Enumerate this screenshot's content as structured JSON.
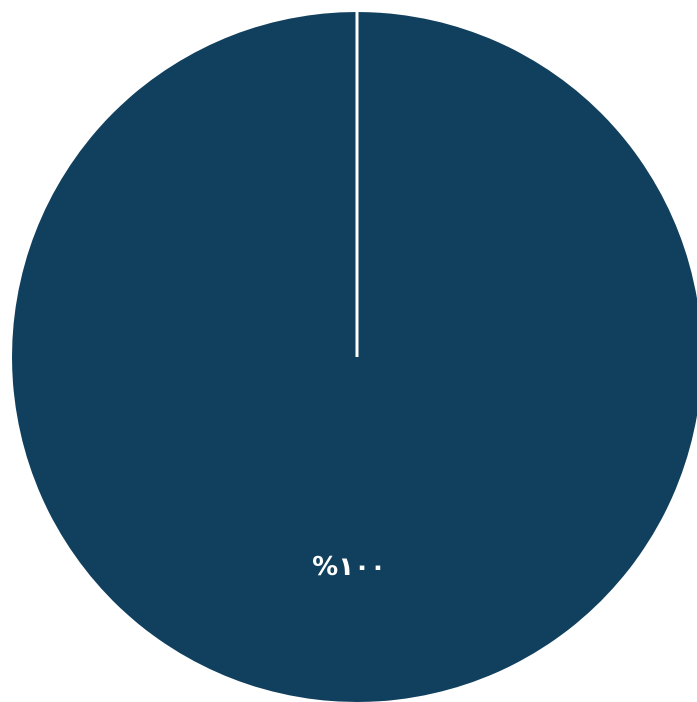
{
  "chart_data": {
    "type": "pie",
    "slices": [
      {
        "value": 100,
        "label": "%١٠٠",
        "color": "#11405e"
      }
    ],
    "separator_color": "#ffffff",
    "title": "",
    "legend": "none"
  }
}
